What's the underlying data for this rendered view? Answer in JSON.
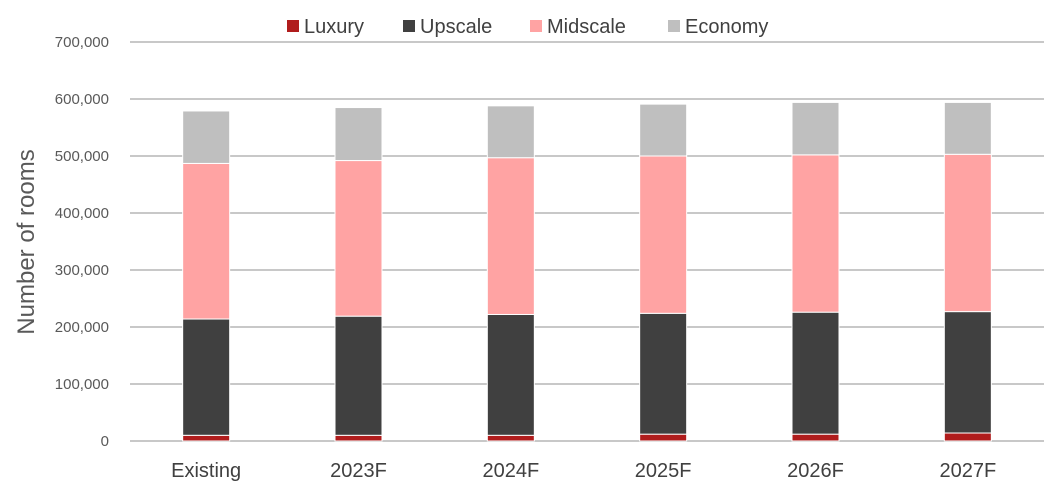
{
  "chart_data": {
    "type": "bar",
    "stacked": true,
    "categories": [
      "Existing",
      "2023F",
      "2024F",
      "2025F",
      "2026F",
      "2027F"
    ],
    "series": [
      {
        "name": "Luxury",
        "color": "#b01c1c",
        "values": [
          10000,
          10000,
          10000,
          12000,
          12000,
          14000
        ]
      },
      {
        "name": "Upscale",
        "color": "#404040",
        "values": [
          204000,
          209000,
          212000,
          212000,
          214000,
          213000
        ]
      },
      {
        "name": "Midscale",
        "color": "#ffa3a3",
        "values": [
          273000,
          273000,
          275000,
          276000,
          276000,
          276000
        ]
      },
      {
        "name": "Economy",
        "color": "#bfbfbf",
        "values": [
          92000,
          93000,
          91000,
          91000,
          92000,
          91000
        ]
      }
    ],
    "ylabel": "Number of rooms",
    "xlabel": "",
    "ylim": [
      0,
      700000
    ],
    "yticks": [
      0,
      100000,
      200000,
      300000,
      400000,
      500000,
      600000,
      700000
    ],
    "ytick_labels": [
      "0",
      "100,000",
      "200,000",
      "300,000",
      "400,000",
      "500,000",
      "600,000",
      "700,000"
    ],
    "grid": true,
    "gridline_color": "#c8c8c8",
    "legend_position": "top"
  }
}
